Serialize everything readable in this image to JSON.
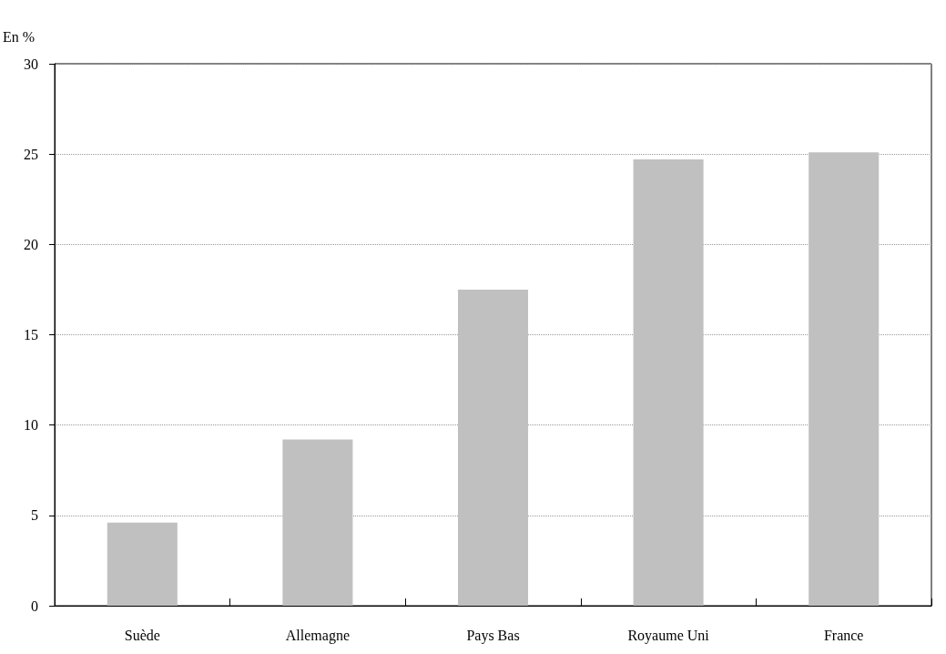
{
  "chart_data": {
    "type": "bar",
    "ylabel": "En %",
    "categories": [
      "Suède",
      "Allemagne",
      "Pays Bas",
      "Royaume Uni",
      "France"
    ],
    "values": [
      4.6,
      9.2,
      17.5,
      24.7,
      25.1
    ],
    "color": "#c0c0c0",
    "ylim": [
      0,
      30
    ],
    "yticks": [
      0,
      5,
      10,
      15,
      20,
      25,
      30
    ],
    "grid": "y"
  }
}
